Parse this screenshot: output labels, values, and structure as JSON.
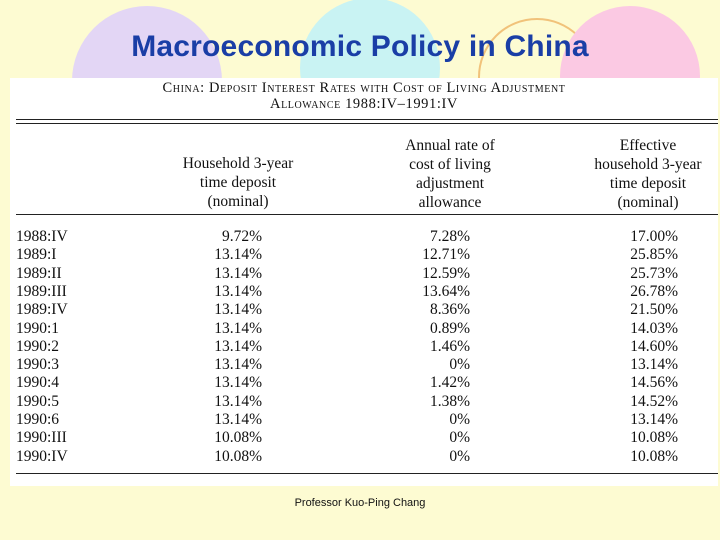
{
  "slide": {
    "title": "Macroeconomic Policy in China",
    "footer": "Professor Kuo-Ping Chang"
  },
  "table": {
    "caption_line1": "China: Deposit Interest Rates with Cost of Living Adjustment",
    "caption_line2": "Allowance 1988:IV–1991:IV",
    "headers": {
      "col1": [
        "Household 3-year",
        "time deposit",
        "(nominal)"
      ],
      "col2": [
        "Annual rate of",
        "cost of living",
        "adjustment",
        "allowance"
      ],
      "col3": [
        "Effective",
        "household 3-year",
        "time deposit",
        "(nominal)"
      ]
    },
    "rows": [
      {
        "period": "1988:IV",
        "deposit": "9.72%",
        "allowance": "7.28%",
        "effective": "17.00%"
      },
      {
        "period": "1989:I",
        "deposit": "13.14%",
        "allowance": "12.71%",
        "effective": "25.85%"
      },
      {
        "period": "1989:II",
        "deposit": "13.14%",
        "allowance": "12.59%",
        "effective": "25.73%"
      },
      {
        "period": "1989:III",
        "deposit": "13.14%",
        "allowance": "13.64%",
        "effective": "26.78%"
      },
      {
        "period": "1989:IV",
        "deposit": "13.14%",
        "allowance": "8.36%",
        "effective": "21.50%"
      },
      {
        "period": "1990:1",
        "deposit": "13.14%",
        "allowance": "0.89%",
        "effective": "14.03%"
      },
      {
        "period": "1990:2",
        "deposit": "13.14%",
        "allowance": "1.46%",
        "effective": "14.60%"
      },
      {
        "period": "1990:3",
        "deposit": "13.14%",
        "allowance": "0%",
        "effective": "13.14%"
      },
      {
        "period": "1990:4",
        "deposit": "13.14%",
        "allowance": "1.42%",
        "effective": "14.56%"
      },
      {
        "period": "1990:5",
        "deposit": "13.14%",
        "allowance": "1.38%",
        "effective": "14.52%"
      },
      {
        "period": "1990:6",
        "deposit": "13.14%",
        "allowance": "0%",
        "effective": "13.14%"
      },
      {
        "period": "1990:III",
        "deposit": "10.08%",
        "allowance": "0%",
        "effective": "10.08%"
      },
      {
        "period": "1990:IV",
        "deposit": "10.08%",
        "allowance": "0%",
        "effective": "10.08%"
      }
    ]
  },
  "colors": {
    "background": "#fdfbd2",
    "title": "#1a3ea6",
    "circle_lavender": "#e3d6f5",
    "circle_cyan": "#c9f3f3",
    "circle_pink": "#fbc9e3",
    "circle_orange_ring": "#f1c27a"
  }
}
